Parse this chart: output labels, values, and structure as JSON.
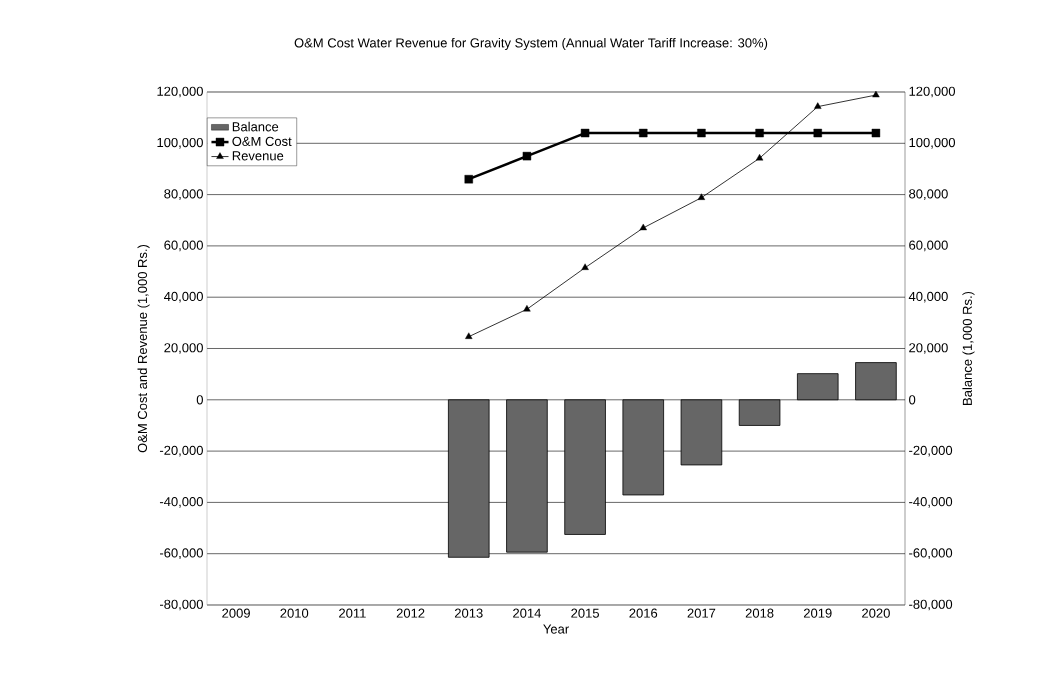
{
  "chart_data": {
    "type": "bar",
    "title": "O&M Cost Water Revenue for Gravity System (Annual Water Tariff Increase: 30%)",
    "xlabel": "Year",
    "ylabel": "O&M Cost and Revenue (1,000 Rs.)",
    "y2label": "Balance (1,000 Rs.)",
    "categories": [
      "2009",
      "2010",
      "2011",
      "2012",
      "2013",
      "2014",
      "2015",
      "2016",
      "2017",
      "2018",
      "2019",
      "2020"
    ],
    "series": [
      {
        "name": "Balance",
        "axis": "y2",
        "color": "#666666",
        "values": [
          null,
          null,
          null,
          null,
          -61400,
          -59400,
          -52500,
          -37100,
          -25400,
          -10000,
          10200,
          14500
        ]
      },
      {
        "name": "O&M Cost",
        "type": "line",
        "color": "#000000",
        "marker": "square",
        "values": [
          null,
          null,
          null,
          null,
          86000,
          95000,
          104000,
          104000,
          104000,
          104000,
          104000,
          104000
        ]
      },
      {
        "name": "Revenue",
        "type": "line",
        "color": "#000000",
        "marker": "triangle",
        "values": [
          null,
          null,
          null,
          null,
          24600,
          35300,
          51500,
          67000,
          78800,
          94200,
          114300,
          118800
        ]
      }
    ],
    "ylim": [
      -80000,
      120000
    ],
    "yticks": [
      {
        "value": -80000,
        "label": "-80,000"
      },
      {
        "value": -60000,
        "label": "-60,000"
      },
      {
        "value": -40000,
        "label": "-40,000"
      },
      {
        "value": -20000,
        "label": "-20,000"
      },
      0,
      {
        "value": 20000,
        "label": "20,000"
      },
      {
        "value": 40000,
        "label": "40,000"
      },
      {
        "value": 60000,
        "label": "60,000"
      },
      {
        "value": 80000,
        "label": "80,000"
      },
      {
        "value": 100000,
        "label": "100,000"
      },
      {
        "value": 120000,
        "label": "120,000"
      }
    ],
    "y2lim": [
      -80000,
      120000
    ],
    "y2ticks": [
      {
        "value": -80000,
        "label": "-80,000"
      },
      {
        "value": -60000,
        "label": "-60,000"
      },
      {
        "value": -40000,
        "label": "-40,000"
      },
      {
        "value": -20000,
        "label": "-20,000"
      },
      0,
      {
        "value": 20000,
        "label": "20,000"
      },
      {
        "value": 40000,
        "label": "40,000"
      },
      {
        "value": 60000,
        "label": "60,000"
      },
      {
        "value": 80000,
        "label": "80,000"
      },
      {
        "value": 100000,
        "label": "100,000"
      },
      {
        "value": 120000,
        "label": "120,000"
      }
    ],
    "grid": "y",
    "legend": "top left"
  }
}
